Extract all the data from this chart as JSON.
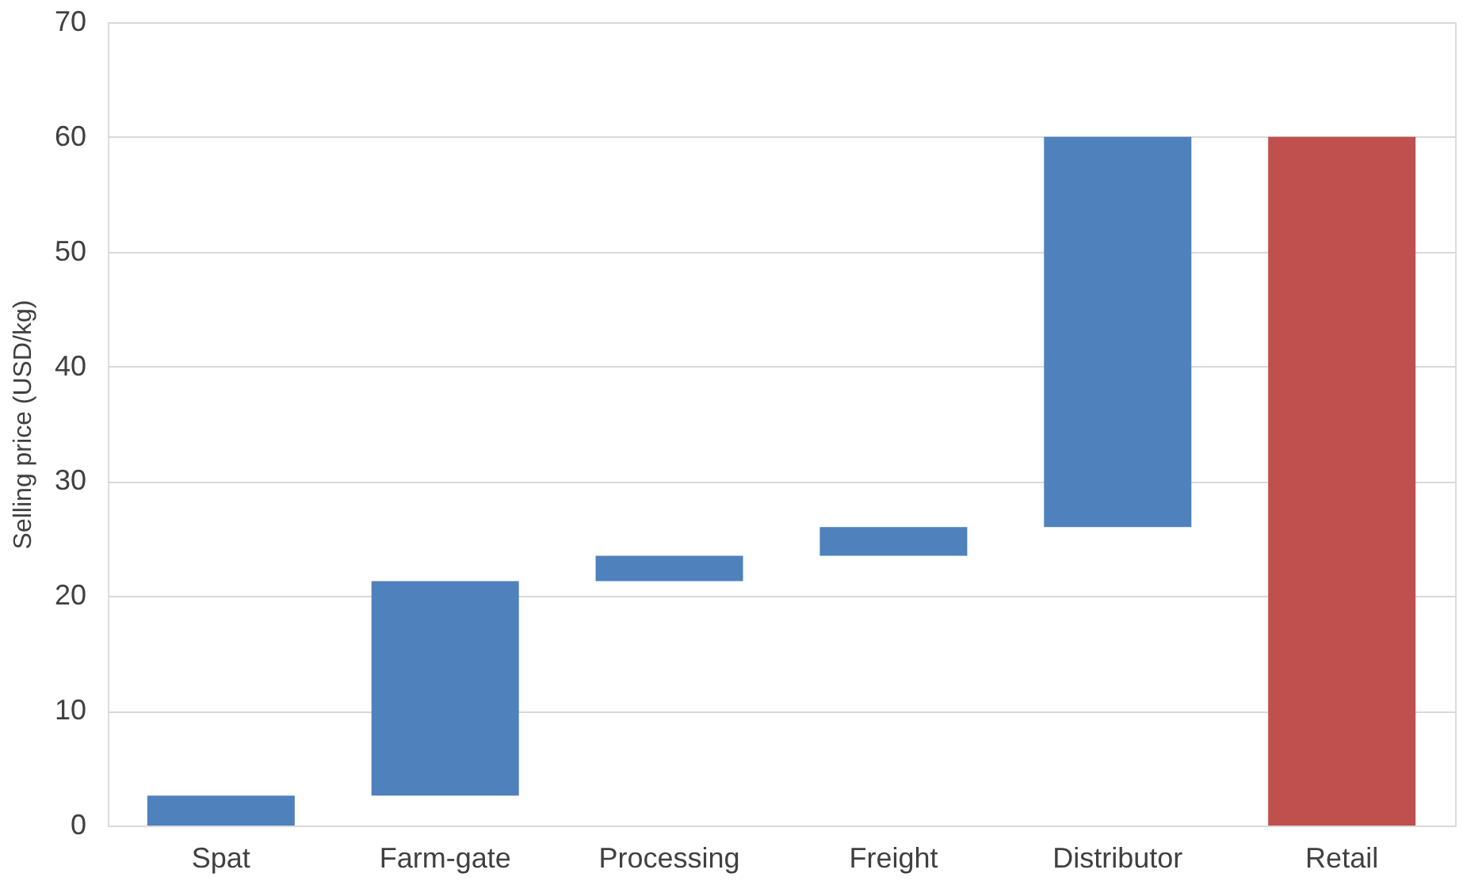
{
  "chart_data": {
    "type": "bar",
    "ylabel": "Selling price (USD/kg)",
    "categories": [
      "Spat",
      "Farm-gate",
      "Processing",
      "Freight",
      "Distributor",
      "Retail"
    ],
    "values": [
      2.6,
      18.7,
      2.2,
      2.5,
      34.0,
      60.0
    ],
    "base": [
      0,
      2.6,
      21.3,
      23.5,
      26.0,
      0
    ],
    "colors": [
      "#4f81bd",
      "#4f81bd",
      "#4f81bd",
      "#4f81bd",
      "#4f81bd",
      "#c0504d"
    ],
    "ylim": [
      0,
      70
    ],
    "yticks": [
      0,
      10,
      20,
      30,
      40,
      50,
      60,
      70
    ],
    "grid": "y"
  }
}
